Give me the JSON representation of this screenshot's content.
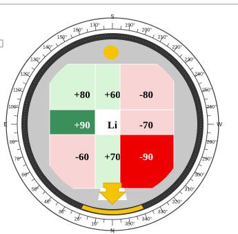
{
  "compass": {
    "cardinals": {
      "north": "N",
      "south": "S",
      "east": "E",
      "west": "W"
    },
    "degree_labels": [
      {
        "deg": 10,
        "label": "10°"
      },
      {
        "deg": 20,
        "label": "20°"
      },
      {
        "deg": 30,
        "label": "30°"
      },
      {
        "deg": 40,
        "label": "40°"
      },
      {
        "deg": 50,
        "label": "50°"
      },
      {
        "deg": 60,
        "label": "60°"
      },
      {
        "deg": 70,
        "label": "70°"
      },
      {
        "deg": 80,
        "label": "80°"
      },
      {
        "deg": 100,
        "label": "100°"
      },
      {
        "deg": 110,
        "label": "110°"
      },
      {
        "deg": 120,
        "label": "120°"
      },
      {
        "deg": 130,
        "label": "130°"
      },
      {
        "deg": 140,
        "label": "140°"
      },
      {
        "deg": 150,
        "label": "150°"
      },
      {
        "deg": 160,
        "label": "160°"
      },
      {
        "deg": 170,
        "label": "170°"
      },
      {
        "deg": 190,
        "label": "190°"
      },
      {
        "deg": 200,
        "label": "200°"
      },
      {
        "deg": 210,
        "label": "210°"
      },
      {
        "deg": 220,
        "label": "220°"
      },
      {
        "deg": 230,
        "label": "230°"
      },
      {
        "deg": 240,
        "label": "240°"
      },
      {
        "deg": 250,
        "label": "250°"
      },
      {
        "deg": 260,
        "label": "260°"
      },
      {
        "deg": 280,
        "label": "280°"
      },
      {
        "deg": 290,
        "label": "290°"
      },
      {
        "deg": 300,
        "label": "300°"
      },
      {
        "deg": 310,
        "label": "310°"
      },
      {
        "deg": 320,
        "label": "320°"
      },
      {
        "deg": 330,
        "label": "330°"
      },
      {
        "deg": 340,
        "label": "340°"
      },
      {
        "deg": 350,
        "label": "350°"
      }
    ]
  },
  "grid": {
    "center_label": "Li",
    "cells": [
      {
        "id": "nw",
        "label": "+80",
        "bg": "#d8f5d8",
        "fg": "#000000"
      },
      {
        "id": "n",
        "label": "+60",
        "bg": "#d8f5d8",
        "fg": "#000000"
      },
      {
        "id": "ne",
        "label": "-80",
        "bg": "#f9d4d4",
        "fg": "#000000"
      },
      {
        "id": "w",
        "label": "+90",
        "bg": "#3a8f5a",
        "fg": "#ffffff"
      },
      {
        "id": "c",
        "label": "Li",
        "bg": "#ffffff",
        "fg": "#000000"
      },
      {
        "id": "e",
        "label": "-70",
        "bg": "#f9d4d4",
        "fg": "#000000"
      },
      {
        "id": "sw",
        "label": "-60",
        "bg": "#f9d4d4",
        "fg": "#000000"
      },
      {
        "id": "s",
        "label": "+70",
        "bg": "#d8f5d8",
        "fg": "#000000"
      },
      {
        "id": "se",
        "label": "-90",
        "bg": "#ee0000",
        "fg": "#ffffff"
      }
    ]
  },
  "colors": {
    "ring": "#333333",
    "body": "#c8c8c8",
    "accent": "#f5c400",
    "bottom_bar": "#f5c400",
    "indicator_icon": "arrow-down-icon",
    "top_marker_icon": "dot-marker-icon"
  }
}
